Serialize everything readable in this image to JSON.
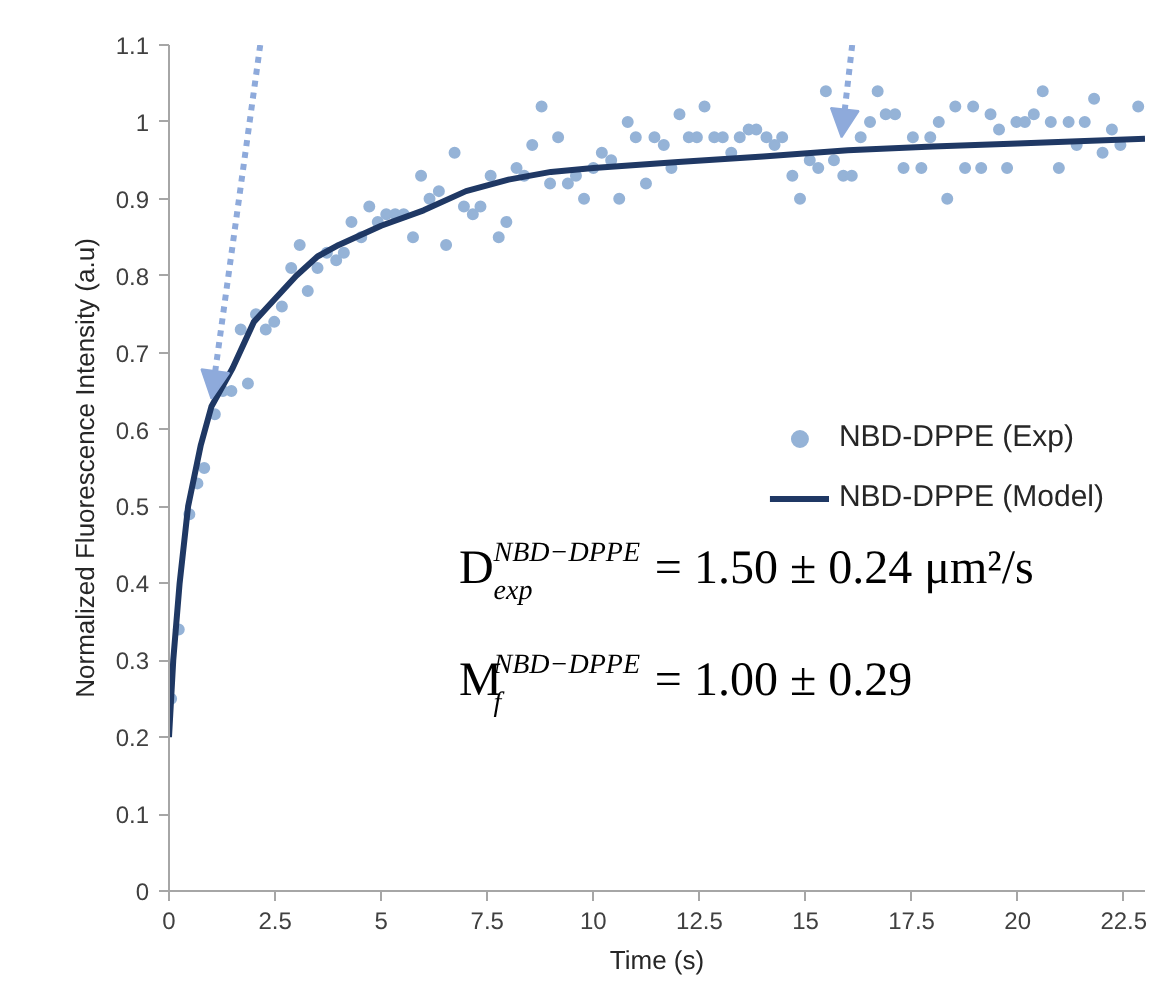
{
  "chart_data": {
    "type": "scatter",
    "xlabel": "Time (s)",
    "ylabel": "Normalized Fluorescence Intensity (a.u)",
    "xlim": [
      0,
      23
    ],
    "ylim": [
      0,
      1.1
    ],
    "xticks": [
      0,
      2.5,
      5,
      7.5,
      10,
      12.5,
      15,
      17.5,
      20,
      22.5
    ],
    "yticks": [
      0,
      0.1,
      0.2,
      0.3,
      0.4,
      0.5,
      0.6,
      0.7,
      0.8,
      0.9,
      1,
      1.1
    ],
    "grid": false,
    "legend": "right",
    "marker": "circle",
    "annotations": [
      "D$^{NBD−DPPE}$$_{exp}$ = 1.50 ± 0.24 μm²/s",
      "M$^{NBD−DPPE}$$_{f}$ = 1.00 ± 0.29"
    ],
    "series": [
      {
        "name": "NBD-DPPE (Exp)",
        "color": "#95b3d7",
        "x": [
          0.05,
          0.23,
          0.48,
          0.67,
          0.83,
          1.08,
          1.27,
          1.47,
          1.69,
          1.86,
          2.05,
          2.28,
          2.48,
          2.66,
          2.88,
          3.08,
          3.27,
          3.5,
          3.72,
          3.94,
          4.12,
          4.3,
          4.53,
          4.72,
          4.92,
          5.12,
          5.33,
          5.53,
          5.75,
          5.94,
          6.14,
          6.36,
          6.53,
          6.73,
          6.95,
          7.16,
          7.34,
          7.58,
          7.77,
          7.95,
          8.19,
          8.37,
          8.56,
          8.78,
          8.98,
          9.17,
          9.4,
          9.59,
          9.78,
          10.0,
          10.2,
          10.42,
          10.61,
          10.81,
          11.0,
          11.24,
          11.44,
          11.66,
          11.84,
          12.03,
          12.25,
          12.44,
          12.62,
          12.85,
          13.05,
          13.25,
          13.45,
          13.66,
          13.84,
          14.08,
          14.27,
          14.45,
          14.69,
          14.87,
          15.1,
          15.3,
          15.48,
          15.67,
          15.89,
          16.09,
          16.3,
          16.52,
          16.7,
          16.89,
          17.11,
          17.31,
          17.53,
          17.73,
          17.94,
          18.14,
          18.34,
          18.53,
          18.76,
          18.95,
          19.14,
          19.36,
          19.56,
          19.75,
          19.97,
          20.17,
          20.38,
          20.59,
          20.78,
          20.97,
          21.2,
          21.39,
          21.58,
          21.8,
          22.0,
          22.22,
          22.42,
          22.84
        ],
        "values": [
          0.25,
          0.34,
          0.49,
          0.53,
          0.55,
          0.62,
          0.65,
          0.65,
          0.73,
          0.66,
          0.75,
          0.73,
          0.74,
          0.76,
          0.81,
          0.84,
          0.78,
          0.81,
          0.83,
          0.82,
          0.83,
          0.87,
          0.85,
          0.89,
          0.87,
          0.88,
          0.88,
          0.88,
          0.85,
          0.93,
          0.9,
          0.91,
          0.84,
          0.96,
          0.89,
          0.88,
          0.89,
          0.93,
          0.85,
          0.87,
          0.94,
          0.93,
          0.97,
          1.02,
          0.92,
          0.98,
          0.92,
          0.93,
          0.9,
          0.94,
          0.96,
          0.95,
          0.9,
          1.0,
          0.98,
          0.92,
          0.98,
          0.97,
          0.94,
          1.01,
          0.98,
          0.98,
          1.02,
          0.98,
          0.98,
          0.96,
          0.98,
          0.99,
          0.99,
          0.98,
          0.97,
          0.98,
          0.93,
          0.9,
          0.95,
          0.94,
          1.04,
          0.95,
          0.93,
          0.93,
          0.98,
          1.0,
          1.04,
          1.01,
          1.01,
          0.94,
          0.98,
          0.94,
          0.98,
          1.0,
          0.9,
          1.02,
          0.94,
          1.02,
          0.94,
          1.01,
          0.99,
          0.94,
          1.0,
          1.0,
          1.01,
          1.04,
          1.0,
          0.94,
          1.0,
          0.97,
          1.0,
          1.03,
          0.96,
          0.99,
          0.97,
          1.02
        ]
      },
      {
        "name": "NBD-DPPE (Model)",
        "type": "line",
        "color": "#1f3864",
        "marker": "none",
        "line_style": "solid",
        "x": [
          0,
          0.1,
          0.25,
          0.45,
          0.75,
          1,
          1.5,
          2,
          2.5,
          3,
          3.5,
          4,
          5,
          6,
          7,
          8,
          9,
          10,
          12,
          14,
          16,
          18,
          20,
          23
        ],
        "values": [
          0.2,
          0.3,
          0.4,
          0.5,
          0.58,
          0.63,
          0.68,
          0.74,
          0.77,
          0.8,
          0.825,
          0.84,
          0.865,
          0.885,
          0.91,
          0.925,
          0.935,
          0.94,
          0.948,
          0.955,
          0.963,
          0.968,
          0.972,
          0.978
        ]
      }
    ]
  }
}
